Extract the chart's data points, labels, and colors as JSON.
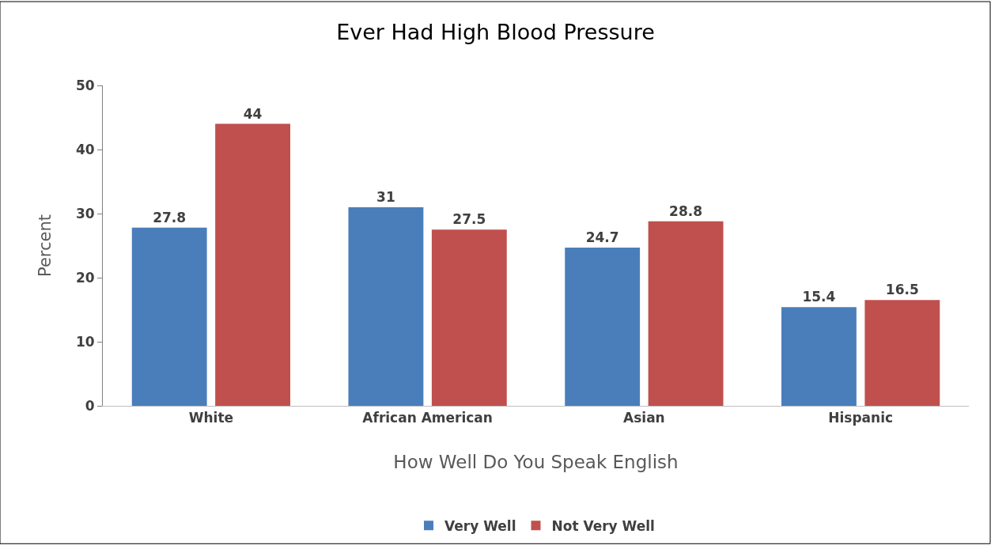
{
  "chart_data": {
    "type": "bar",
    "title": "Ever Had High Blood Pressure",
    "xlabel": "How Well Do You Speak English",
    "ylabel": "Percent",
    "categories": [
      "White",
      "African American",
      "Asian",
      "Hispanic"
    ],
    "series": [
      {
        "name": "Very Well",
        "color": "#4a7ebb",
        "values": [
          27.8,
          31,
          24.7,
          15.4
        ]
      },
      {
        "name": "Not Very Well",
        "color": "#c0504d",
        "values": [
          44,
          27.5,
          28.8,
          16.5
        ]
      }
    ],
    "ylim": [
      0,
      50
    ],
    "yticks": [
      0,
      10,
      20,
      30,
      40,
      50
    ],
    "legend": "bottom",
    "data_labels": true
  }
}
